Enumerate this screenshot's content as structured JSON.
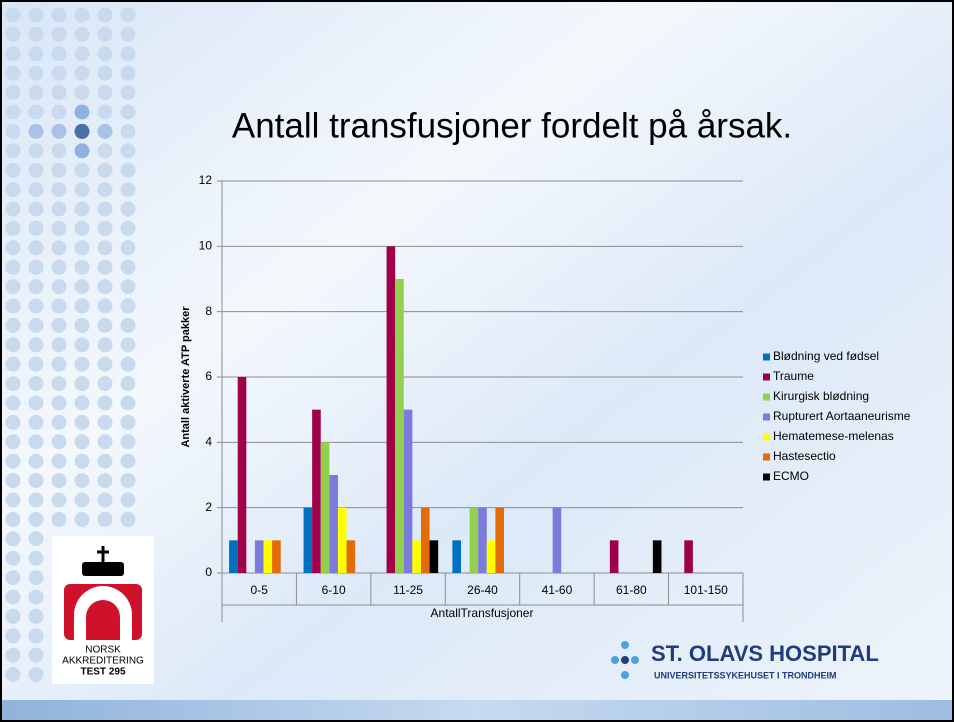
{
  "chart_data": {
    "type": "bar",
    "title": "Antall transfusjoner fordelt på årsak.",
    "x_label": "AntallTransfusjoner",
    "y_label": "Antall aktiverte ATP pakker",
    "categories": [
      "0-5",
      "6-10",
      "11-25",
      "26-40",
      "41-60",
      "61-80",
      "101-150"
    ],
    "series": [
      {
        "name": "Blødning ved fødsel",
        "color": "#0070c0",
        "values": [
          1,
          2,
          0,
          1,
          0,
          0,
          0
        ]
      },
      {
        "name": "Traume",
        "color": "#a0004a",
        "values": [
          6,
          5,
          10,
          0,
          0,
          1,
          1
        ]
      },
      {
        "name": "Kirurgisk blødning",
        "color": "#92d050",
        "values": [
          0,
          4,
          9,
          2,
          0,
          0,
          0
        ]
      },
      {
        "name": "Rupturert Aortaaneurisme",
        "color": "#7b7bdc",
        "values": [
          1,
          3,
          5,
          2,
          2,
          0,
          0
        ]
      },
      {
        "name": "Hematemese-melenas",
        "color": "#ffff00",
        "values": [
          1,
          2,
          1,
          1,
          0,
          0,
          0
        ]
      },
      {
        "name": "Hastesectio",
        "color": "#e36c09",
        "values": [
          1,
          1,
          2,
          2,
          0,
          0,
          0
        ]
      },
      {
        "name": "ECMO",
        "color": "#000000",
        "values": [
          0,
          0,
          1,
          0,
          0,
          1,
          0
        ]
      }
    ],
    "ylim": [
      0,
      12
    ],
    "yticks": [
      0,
      2,
      4,
      6,
      8,
      10,
      12
    ],
    "grid": true,
    "legend": "right"
  },
  "logos": {
    "accreditation": [
      "NORSK",
      "AKKREDITERING",
      "TEST 295"
    ],
    "hospital": "ST. OLAVS HOSPITAL",
    "hospital_sub": "UNIVERSITETSSYKEHUSET I TRONDHEIM"
  }
}
